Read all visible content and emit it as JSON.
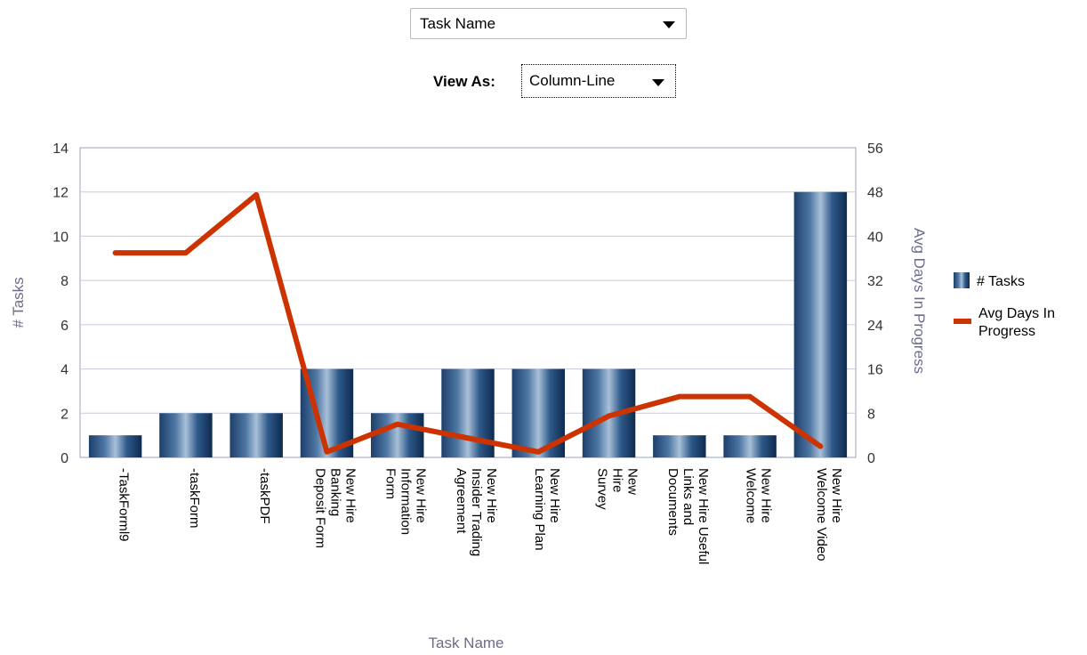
{
  "controls": {
    "group_by_value": "Task Name",
    "view_as_label": "View As:",
    "view_as_value": "Column-Line"
  },
  "chart_data": {
    "type": "bar",
    "combo": "column-line",
    "categories": [
      "-TaskForml9",
      "-taskForm",
      "-taskPDF",
      "New Hire Banking Deposit Form",
      "New Hire Information Form",
      "New Hire Insider Trading Agreement",
      "New Hire Learning Plan",
      "New Hire Survey",
      "New Hire Useful Links and Documents",
      "New Hire Welcome",
      "New Hire Welcome Video"
    ],
    "category_lines": [
      [
        "-TaskForml9"
      ],
      [
        "-taskForm"
      ],
      [
        "-taskPDF"
      ],
      [
        "New Hire",
        "Banking",
        "Deposit Form"
      ],
      [
        "New Hire",
        "Information",
        "Form"
      ],
      [
        "New Hire",
        "Insider Trading",
        "Agreement"
      ],
      [
        "New Hire",
        "Learning Plan"
      ],
      [
        "New",
        "Hire",
        "Survey"
      ],
      [
        "New Hire Useful",
        "Links and",
        "Documents"
      ],
      [
        "New Hire",
        "Welcome"
      ],
      [
        "New Hire",
        "Welcome Video"
      ]
    ],
    "series": [
      {
        "name": "# Tasks",
        "type": "bar",
        "axis": "left",
        "color": "#1f4e7a",
        "values": [
          1,
          2,
          2,
          4,
          2,
          4,
          4,
          4,
          1,
          1,
          12
        ]
      },
      {
        "name": "Avg Days In Progress",
        "type": "line",
        "axis": "right",
        "color": "#cc3300",
        "values": [
          37,
          37,
          47.5,
          1,
          6,
          3.5,
          1,
          7.5,
          11,
          11,
          2
        ]
      }
    ],
    "xlabel": "Task Name",
    "ylabel": "# Tasks",
    "y2label": "Avg Days In Progress",
    "ylim": [
      0,
      14
    ],
    "yticks": [
      0,
      2,
      4,
      6,
      8,
      10,
      12,
      14
    ],
    "y2lim": [
      0,
      56
    ],
    "y2ticks": [
      0,
      8,
      16,
      24,
      32,
      40,
      48,
      56
    ],
    "legend_position": "right",
    "legend_line2": [
      "Avg Days In",
      "Progress"
    ],
    "grid": true
  }
}
